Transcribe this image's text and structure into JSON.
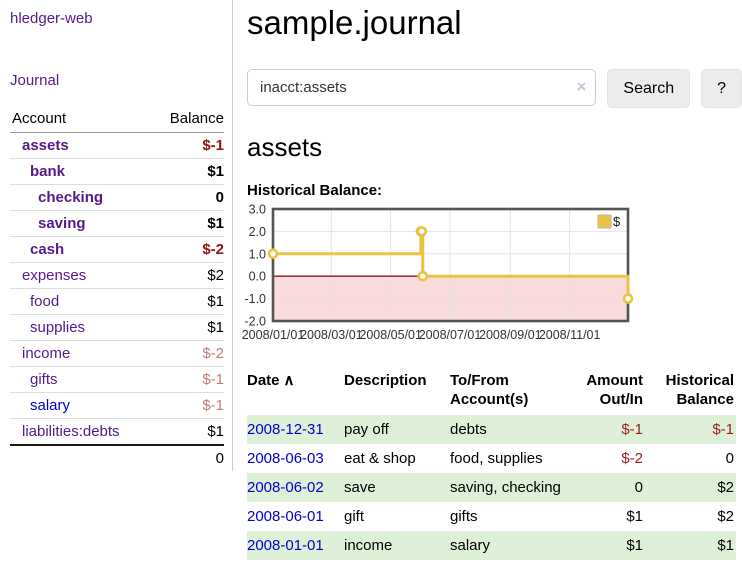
{
  "sidebar": {
    "app_title": "hledger-web",
    "journal_label": "Journal",
    "accounts_table": {
      "headers": {
        "account": "Account",
        "balance": "Balance"
      },
      "rows": [
        {
          "name": "assets",
          "depth": 1,
          "bold": true,
          "link_color": "purple",
          "balance": "$-1",
          "balance_style": "neg-bold"
        },
        {
          "name": "bank",
          "depth": 2,
          "bold": true,
          "link_color": "purple",
          "balance": "$1",
          "balance_style": "pos-bold"
        },
        {
          "name": "checking",
          "depth": 3,
          "bold": true,
          "link_color": "purple",
          "balance": "0",
          "balance_style": "pos-bold"
        },
        {
          "name": "saving",
          "depth": 3,
          "bold": true,
          "link_color": "purple",
          "balance": "$1",
          "balance_style": "pos-bold"
        },
        {
          "name": "cash",
          "depth": 2,
          "bold": true,
          "link_color": "purple",
          "balance": "$-2",
          "balance_style": "neg-bold"
        },
        {
          "name": "expenses",
          "depth": 1,
          "bold": false,
          "link_color": "purple",
          "balance": "$2",
          "balance_style": "pos"
        },
        {
          "name": "food",
          "depth": 2,
          "bold": false,
          "link_color": "purple",
          "balance": "$1",
          "balance_style": "pos"
        },
        {
          "name": "supplies",
          "depth": 2,
          "bold": false,
          "link_color": "purple",
          "balance": "$1",
          "balance_style": "pos"
        },
        {
          "name": "income",
          "depth": 1,
          "bold": false,
          "link_color": "purple",
          "balance": "$-2",
          "balance_style": "neg-light"
        },
        {
          "name": "gifts",
          "depth": 2,
          "bold": false,
          "link_color": "purple",
          "balance": "$-1",
          "balance_style": "neg-light"
        },
        {
          "name": "salary",
          "depth": 2,
          "bold": false,
          "link_color": "blue",
          "balance": "$-1",
          "balance_style": "neg-light"
        },
        {
          "name": "liabilities:debts",
          "depth": 1,
          "bold": false,
          "link_color": "purple",
          "balance": "$1",
          "balance_style": "pos",
          "strong_separator": true
        }
      ],
      "total": "0"
    }
  },
  "main": {
    "title": "sample.journal",
    "search": {
      "value": "inacct:assets",
      "clear_icon": "×",
      "button_label": "Search",
      "help_label": "?"
    },
    "account_heading": "assets",
    "chart_label": "Historical Balance:",
    "register_table": {
      "headers": {
        "date": "Date",
        "sort_indicator": "∧",
        "description": "Description",
        "accounts": "To/From Account(s)",
        "amount": "Amount Out/In",
        "balance": "Historical Balance"
      },
      "rows": [
        {
          "date": "2008-12-31",
          "description": "pay off",
          "accounts": "debts",
          "amount": "$-1",
          "amount_negative": true,
          "balance": "$-1",
          "balance_negative": true
        },
        {
          "date": "2008-06-03",
          "description": "eat & shop",
          "accounts": "food, supplies",
          "amount": "$-2",
          "amount_negative": true,
          "balance": "0",
          "balance_negative": false
        },
        {
          "date": "2008-06-02",
          "description": "save",
          "accounts": "saving, checking",
          "amount": "0",
          "amount_negative": false,
          "balance": "$2",
          "balance_negative": false
        },
        {
          "date": "2008-06-01",
          "description": "gift",
          "accounts": "gifts",
          "amount": "$1",
          "amount_negative": false,
          "balance": "$2",
          "balance_negative": false
        },
        {
          "date": "2008-01-01",
          "description": "income",
          "accounts": "salary",
          "amount": "$1",
          "amount_negative": false,
          "balance": "$1",
          "balance_negative": false
        }
      ]
    }
  },
  "chart_data": {
    "type": "line",
    "title": "Historical Balance",
    "line_mode": "step-after",
    "series": [
      {
        "name": "$",
        "points": [
          {
            "x": "2008-01-01",
            "y": 1
          },
          {
            "x": "2008-06-01",
            "y": 2
          },
          {
            "x": "2008-06-02",
            "y": 2
          },
          {
            "x": "2008-06-03",
            "y": 0
          },
          {
            "x": "2008-12-31",
            "y": -1
          }
        ]
      }
    ],
    "xrange": [
      "2008-01-01",
      "2008-12-31"
    ],
    "ylim": [
      -2,
      3
    ],
    "yticks": [
      {
        "v": 3,
        "label": "3.0"
      },
      {
        "v": 2,
        "label": "2.0"
      },
      {
        "v": 1,
        "label": "1.0"
      },
      {
        "v": 0,
        "label": "0.0"
      },
      {
        "v": -1,
        "label": "-1.0"
      },
      {
        "v": -2,
        "label": "-2.0"
      }
    ],
    "xticks": [
      {
        "x": "2008-01-01",
        "label": "2008/01/01"
      },
      {
        "x": "2008-03-01",
        "label": "2008/03/01"
      },
      {
        "x": "2008-05-01",
        "label": "2008/05/01"
      },
      {
        "x": "2008-07-01",
        "label": "2008/07/01"
      },
      {
        "x": "2008-09-01",
        "label": "2008/09/01"
      },
      {
        "x": "2008-11-01",
        "label": "2008/11/01"
      }
    ],
    "legend": {
      "label": "$",
      "position": "top-right"
    },
    "grid": true,
    "negative_region_shaded": true
  },
  "colors": {
    "link_purple": "#551a8b",
    "link_blue": "#0000cc",
    "negative_dark": "#991111",
    "negative_muted": "#c47b7b",
    "row_stripe_green": "#dff0d8",
    "series_yellow": "#edc240",
    "zero_line_red": "#8b1a1a",
    "negative_fill_pink": "#fbdcdc",
    "plot_border_gray": "#545454"
  }
}
